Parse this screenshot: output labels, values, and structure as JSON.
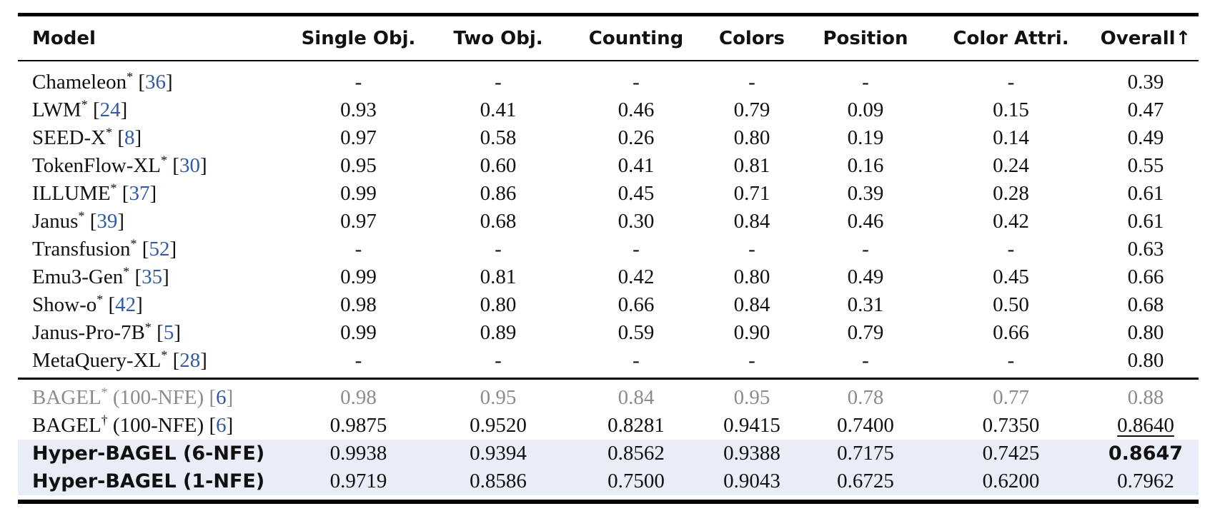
{
  "headers": [
    "Model",
    "Single Obj.",
    "Two Obj.",
    "Counting",
    "Colors",
    "Position",
    "Color Attri.",
    "Overall↑"
  ],
  "group1": [
    {
      "name": "Chameleon",
      "mark": "*",
      "ref": "36",
      "values": [
        "-",
        "-",
        "-",
        "-",
        "-",
        "-",
        "0.39"
      ]
    },
    {
      "name": "LWM",
      "mark": "*",
      "ref": "24",
      "values": [
        "0.93",
        "0.41",
        "0.46",
        "0.79",
        "0.09",
        "0.15",
        "0.47"
      ]
    },
    {
      "name": "SEED-X",
      "mark": "*",
      "ref": "8",
      "values": [
        "0.97",
        "0.58",
        "0.26",
        "0.80",
        "0.19",
        "0.14",
        "0.49"
      ]
    },
    {
      "name": "TokenFlow-XL",
      "mark": "*",
      "ref": "30",
      "values": [
        "0.95",
        "0.60",
        "0.41",
        "0.81",
        "0.16",
        "0.24",
        "0.55"
      ]
    },
    {
      "name": "ILLUME",
      "mark": "*",
      "ref": "37",
      "values": [
        "0.99",
        "0.86",
        "0.45",
        "0.71",
        "0.39",
        "0.28",
        "0.61"
      ]
    },
    {
      "name": "Janus",
      "mark": "*",
      "ref": "39",
      "values": [
        "0.97",
        "0.68",
        "0.30",
        "0.84",
        "0.46",
        "0.42",
        "0.61"
      ]
    },
    {
      "name": "Transfusion",
      "mark": "*",
      "ref": "52",
      "values": [
        "-",
        "-",
        "-",
        "-",
        "-",
        "-",
        "0.63"
      ]
    },
    {
      "name": "Emu3-Gen",
      "mark": "*",
      "ref": "35",
      "values": [
        "0.99",
        "0.81",
        "0.42",
        "0.80",
        "0.49",
        "0.45",
        "0.66"
      ]
    },
    {
      "name": "Show-o",
      "mark": "*",
      "ref": "42",
      "values": [
        "0.98",
        "0.80",
        "0.66",
        "0.84",
        "0.31",
        "0.50",
        "0.68"
      ]
    },
    {
      "name": "Janus-Pro-7B",
      "mark": "*",
      "ref": "5",
      "values": [
        "0.99",
        "0.89",
        "0.59",
        "0.90",
        "0.79",
        "0.66",
        "0.80"
      ]
    },
    {
      "name": "MetaQuery-XL",
      "mark": "*",
      "ref": "28",
      "values": [
        "-",
        "-",
        "-",
        "-",
        "-",
        "-",
        "0.80"
      ]
    }
  ],
  "group2": [
    {
      "name": "BAGEL",
      "mark": "*",
      "suffix": "(100-NFE)",
      "ref": "6",
      "values": [
        "0.98",
        "0.95",
        "0.84",
        "0.95",
        "0.78",
        "0.77",
        "0.88"
      ]
    },
    {
      "name": "BAGEL",
      "mark": "†",
      "suffix": "(100-NFE)",
      "ref": "6",
      "values": [
        "0.9875",
        "0.9520",
        "0.8281",
        "0.9415",
        "0.7400",
        "0.7350",
        "0.8640"
      ]
    },
    {
      "name": "Hyper-BAGEL (6-NFE)",
      "values": [
        "0.9938",
        "0.9394",
        "0.8562",
        "0.9388",
        "0.7175",
        "0.7425",
        "0.8647"
      ]
    },
    {
      "name": "Hyper-BAGEL (1-NFE)",
      "values": [
        "0.9719",
        "0.8586",
        "0.7500",
        "0.9043",
        "0.6725",
        "0.6200",
        "0.7962"
      ]
    }
  ],
  "colors": {
    "reference_link": "#2e5aa8",
    "gray_text": "#8c8c8c",
    "highlight": "#e8edf7"
  }
}
